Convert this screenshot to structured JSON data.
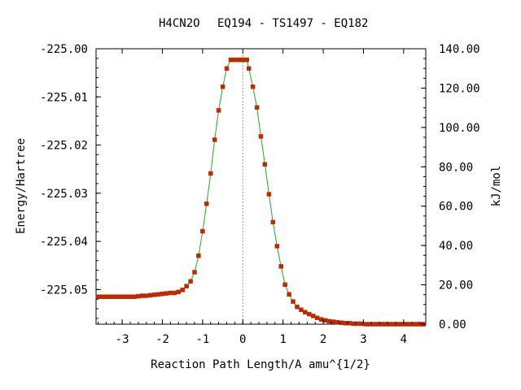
{
  "chart_data": {
    "type": "line",
    "title": {
      "molecule": "H4CN2O",
      "path": "EQ194 - TS1497 - EQ182"
    },
    "xlabel": "Reaction Path Length/A amu^{1/2}",
    "ylabel_left": "Energy/Hartree",
    "ylabel_right": "kJ/mol",
    "xlim": [
      -3.65,
      4.55
    ],
    "ylim_left": [
      -225.0572,
      -225.0
    ],
    "ylim_right": [
      0.0,
      140.0
    ],
    "x_ticks": [
      "-3",
      "-2",
      "-1",
      "0",
      "1",
      "2",
      "3",
      "4"
    ],
    "y_ticks_left": [
      "-225.00",
      "-225.01",
      "-225.02",
      "-225.03",
      "-225.04",
      "-225.05"
    ],
    "y_ticks_right": [
      "0.00",
      "20.00",
      "40.00",
      "60.00",
      "80.00",
      "100.00",
      "120.00",
      "140.00"
    ],
    "grid": false,
    "reference_line_x": 0,
    "line_color": "#22aa22",
    "marker_color": "#cc2200",
    "series": [
      {
        "x": [
          -3.6,
          -3.5,
          -3.4,
          -3.3,
          -3.2,
          -3.1,
          -3.0,
          -2.9,
          -2.8,
          -2.7,
          -2.6,
          -2.5,
          -2.4,
          -2.3,
          -2.2,
          -2.1,
          -2.0,
          -1.9,
          -1.8,
          -1.7,
          -1.6,
          -1.5,
          -1.4,
          -1.3,
          -1.2,
          -1.1,
          -1.0,
          -0.9,
          -0.8,
          -0.7,
          -0.6,
          -0.5,
          -0.4,
          -0.3,
          -0.2,
          -0.1,
          -0.05,
          0.0,
          0.05,
          0.1,
          0.15,
          0.25,
          0.35,
          0.45,
          0.55,
          0.65,
          0.75,
          0.85,
          0.95,
          1.05,
          1.15,
          1.25,
          1.35,
          1.45,
          1.55,
          1.65,
          1.75,
          1.85,
          1.95,
          2.05,
          2.15,
          2.25,
          2.35,
          2.45,
          2.55,
          2.65,
          2.75,
          2.85,
          2.95,
          3.05,
          3.15,
          3.25,
          3.35,
          3.45,
          3.55,
          3.65,
          3.75,
          3.85,
          3.95,
          4.05,
          4.15,
          4.25,
          4.35,
          4.45,
          4.5
        ],
        "y": [
          -225.0515,
          -225.0515,
          -225.0515,
          -225.0515,
          -225.0515,
          -225.0515,
          -225.0515,
          -225.0515,
          -225.0515,
          -225.0515,
          -225.0514,
          -225.0513,
          -225.0513,
          -225.0512,
          -225.0511,
          -225.051,
          -225.0509,
          -225.0508,
          -225.0507,
          -225.0507,
          -225.0505,
          -225.0501,
          -225.0493,
          -225.0483,
          -225.0464,
          -225.043,
          -225.0379,
          -225.0322,
          -225.0259,
          -225.0189,
          -225.0128,
          -225.0079,
          -225.0041,
          -225.0023,
          -225.0023,
          -225.0023,
          -225.0023,
          -225.0023,
          -225.0023,
          -225.0023,
          -225.0041,
          -225.0079,
          -225.0122,
          -225.0182,
          -225.024,
          -225.0302,
          -225.036,
          -225.041,
          -225.0452,
          -225.049,
          -225.051,
          -225.0525,
          -225.0536,
          -225.0542,
          -225.0547,
          -225.0551,
          -225.0555,
          -225.0559,
          -225.0562,
          -225.0564,
          -225.0566,
          -225.0567,
          -225.0568,
          -225.0569,
          -225.057,
          -225.057,
          -225.0571,
          -225.0571,
          -225.0571,
          -225.0572,
          -225.0572,
          -225.0572,
          -225.0572,
          -225.0572,
          -225.0572,
          -225.0572,
          -225.0572,
          -225.0572,
          -225.0572,
          -225.0572,
          -225.0572,
          -225.0572,
          -225.0572,
          -225.0572,
          -225.0572
        ]
      }
    ]
  }
}
